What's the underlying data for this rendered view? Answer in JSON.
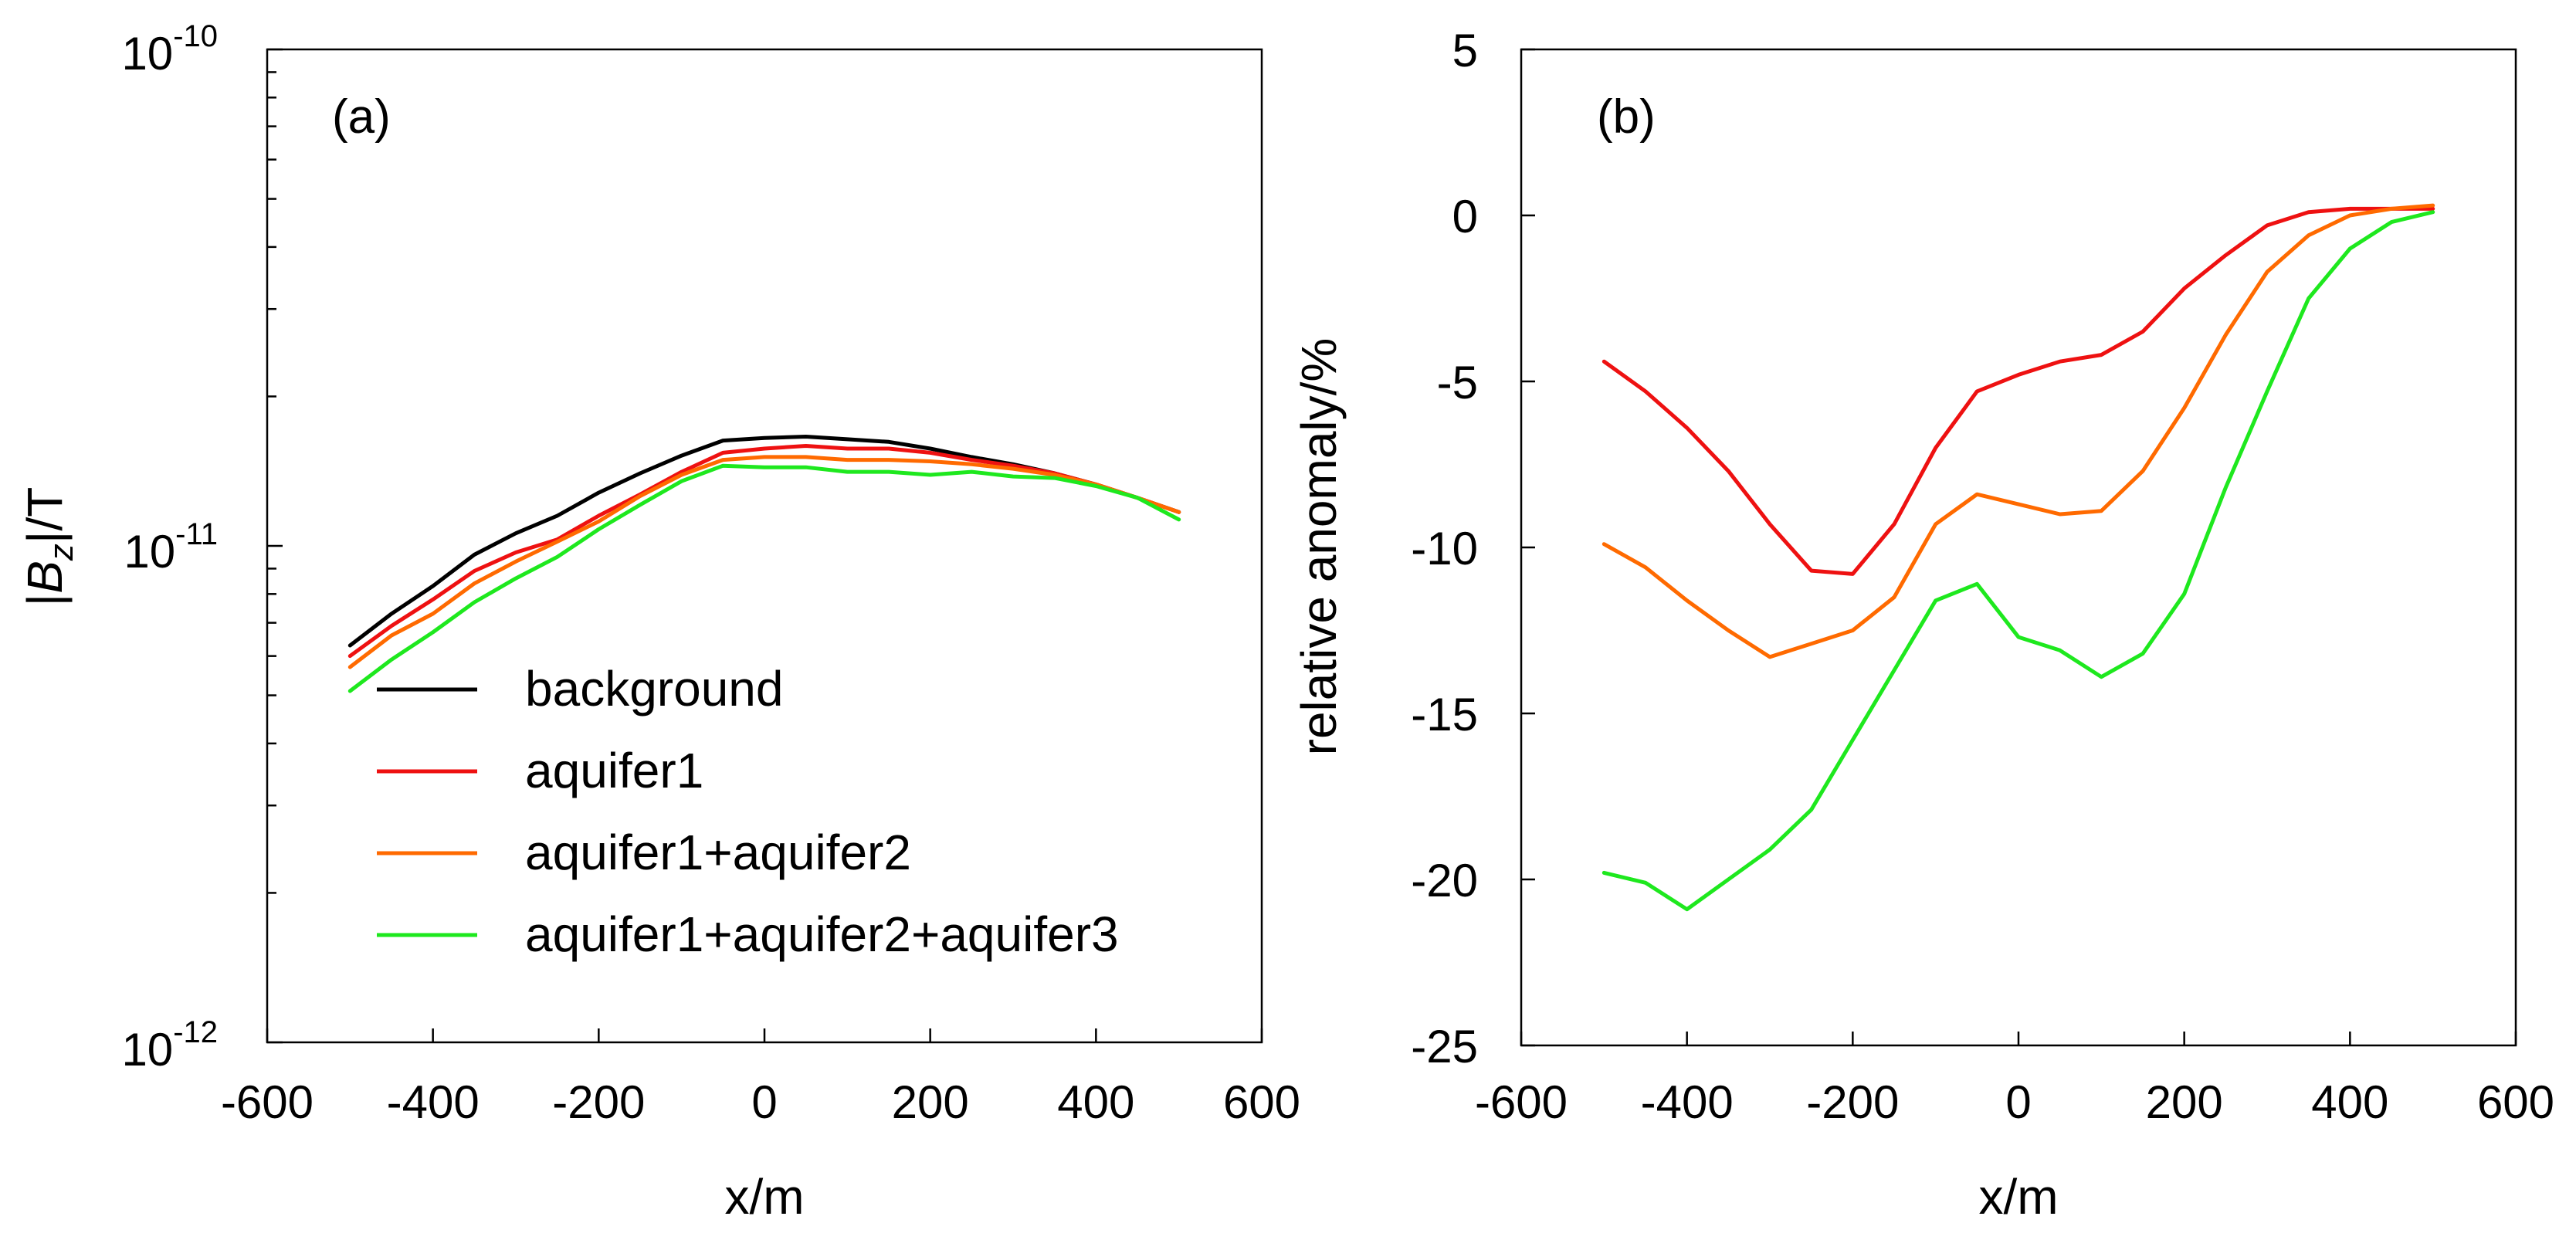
{
  "colors": {
    "background": "#000000",
    "aquifer1": "#ee1111",
    "aquifer1+aquifer2": "#ff6a00",
    "aquifer1+aquifer2+aquifer3": "#1ee81e"
  },
  "chart_data": [
    {
      "type": "line",
      "panel_label": "(a)",
      "xlabel": "x/m",
      "ylabel_parts": [
        "|",
        "B",
        "z",
        "|/T"
      ],
      "yscale": "log",
      "xlim": [
        -600,
        600
      ],
      "ylim": [
        1e-12,
        1e-10
      ],
      "xticks": [
        -600,
        -400,
        -200,
        0,
        200,
        400,
        600
      ],
      "xtick_labels": [
        "-600",
        "-400",
        "-200",
        "0",
        "200",
        "400",
        "600"
      ],
      "ytick_labels": [
        {
          "value": 1e-10,
          "base": "10",
          "exp": "-10"
        },
        {
          "value": 1e-11,
          "base": "10",
          "exp": "-11"
        },
        {
          "value": 1e-12,
          "base": "10",
          "exp": "-12"
        }
      ],
      "legend_position": "lower-left",
      "legend": [
        "background",
        "aquifer1",
        "aquifer1+aquifer2",
        "aquifer1+aquifer2+aquifer3"
      ],
      "x": [
        -500,
        -450,
        -400,
        -350,
        -300,
        -250,
        -200,
        -150,
        -100,
        -50,
        0,
        50,
        100,
        150,
        200,
        250,
        300,
        350,
        400,
        450,
        500
      ],
      "series": [
        {
          "name": "background",
          "values": [
            6.3e-12,
            7.3e-12,
            8.3e-12,
            9.6e-12,
            1.06e-11,
            1.15e-11,
            1.28e-11,
            1.4e-11,
            1.52e-11,
            1.63e-11,
            1.65e-11,
            1.66e-11,
            1.64e-11,
            1.62e-11,
            1.57e-11,
            1.51e-11,
            1.46e-11,
            1.4e-11,
            1.33e-11,
            1.25e-11,
            1.17e-11
          ]
        },
        {
          "name": "aquifer1",
          "values": [
            6e-12,
            6.9e-12,
            7.8e-12,
            8.9e-12,
            9.7e-12,
            1.03e-11,
            1.15e-11,
            1.27e-11,
            1.41e-11,
            1.54e-11,
            1.57e-11,
            1.59e-11,
            1.57e-11,
            1.57e-11,
            1.54e-11,
            1.49e-11,
            1.45e-11,
            1.4e-11,
            1.33e-11,
            1.25e-11,
            1.17e-11
          ]
        },
        {
          "name": "aquifer1+aquifer2",
          "values": [
            5.7e-12,
            6.6e-12,
            7.3e-12,
            8.4e-12,
            9.3e-12,
            1.02e-11,
            1.12e-11,
            1.26e-11,
            1.39e-11,
            1.49e-11,
            1.51e-11,
            1.51e-11,
            1.49e-11,
            1.49e-11,
            1.48e-11,
            1.46e-11,
            1.43e-11,
            1.39e-11,
            1.33e-11,
            1.25e-11,
            1.17e-11
          ]
        },
        {
          "name": "aquifer1+aquifer2+aquifer3",
          "values": [
            5.1e-12,
            5.9e-12,
            6.7e-12,
            7.7e-12,
            8.6e-12,
            9.5e-12,
            1.08e-11,
            1.21e-11,
            1.35e-11,
            1.45e-11,
            1.44e-11,
            1.44e-11,
            1.41e-11,
            1.41e-11,
            1.39e-11,
            1.41e-11,
            1.38e-11,
            1.37e-11,
            1.32e-11,
            1.25e-11,
            1.13e-11
          ]
        }
      ]
    },
    {
      "type": "line",
      "panel_label": "(b)",
      "xlabel": "x/m",
      "ylabel": "relative anomaly/%",
      "yscale": "linear",
      "xlim": [
        -600,
        600
      ],
      "ylim": [
        -25,
        5
      ],
      "xticks": [
        -600,
        -400,
        -200,
        0,
        200,
        400,
        600
      ],
      "xtick_labels": [
        "-600",
        "-400",
        "-200",
        "0",
        "200",
        "400",
        "600"
      ],
      "yticks": [
        5,
        0,
        -5,
        -10,
        -15,
        -20,
        -25
      ],
      "ytick_labels": [
        "5",
        "0",
        "-5",
        "-10",
        "-15",
        "-20",
        "-25"
      ],
      "x": [
        -500,
        -450,
        -400,
        -350,
        -300,
        -250,
        -200,
        -150,
        -100,
        -50,
        0,
        50,
        100,
        150,
        200,
        250,
        300,
        350,
        400,
        450,
        500
      ],
      "series": [
        {
          "name": "aquifer1",
          "values": [
            -4.4,
            -5.3,
            -6.4,
            -7.7,
            -9.3,
            -10.7,
            -10.8,
            -9.3,
            -7.0,
            -5.3,
            -4.8,
            -4.4,
            -4.2,
            -3.5,
            -2.2,
            -1.2,
            -0.3,
            0.1,
            0.2,
            0.2,
            0.2
          ]
        },
        {
          "name": "aquifer1+aquifer2",
          "values": [
            -9.9,
            -10.6,
            -11.6,
            -12.5,
            -13.3,
            -12.9,
            -12.5,
            -11.5,
            -9.3,
            -8.4,
            -8.7,
            -9.0,
            -8.9,
            -7.7,
            -5.8,
            -3.6,
            -1.7,
            -0.6,
            0.0,
            0.2,
            0.3
          ]
        },
        {
          "name": "aquifer1+aquifer2+aquifer3",
          "values": [
            -19.8,
            -20.1,
            -20.9,
            -20.0,
            -19.1,
            -17.9,
            -15.8,
            -13.7,
            -11.6,
            -11.1,
            -12.7,
            -13.1,
            -13.9,
            -13.2,
            -11.4,
            -8.2,
            -5.3,
            -2.5,
            -1.0,
            -0.2,
            0.1
          ]
        }
      ]
    }
  ]
}
